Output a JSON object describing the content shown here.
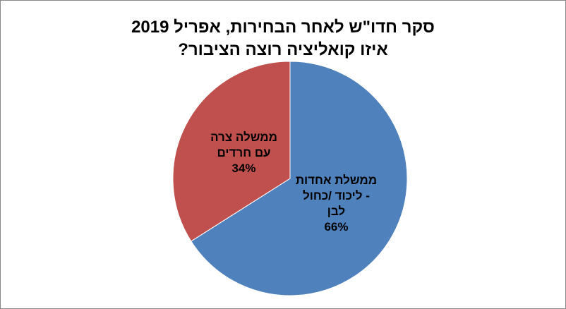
{
  "chart_data": {
    "type": "pie",
    "title": [
      "סקר חדו\"ש לאחר הבחירות,  אפריל 2019",
      "איזו קואליציה רוצה הציבור?"
    ],
    "categories": [
      "ממשלת אחדות - ליכוד /כחול לבן",
      "ממשלה צרה עם חרדים"
    ],
    "values": [
      66,
      34
    ],
    "value_labels": [
      "66%",
      "34%"
    ],
    "colors": [
      "#4f81bd",
      "#c0504d"
    ]
  }
}
